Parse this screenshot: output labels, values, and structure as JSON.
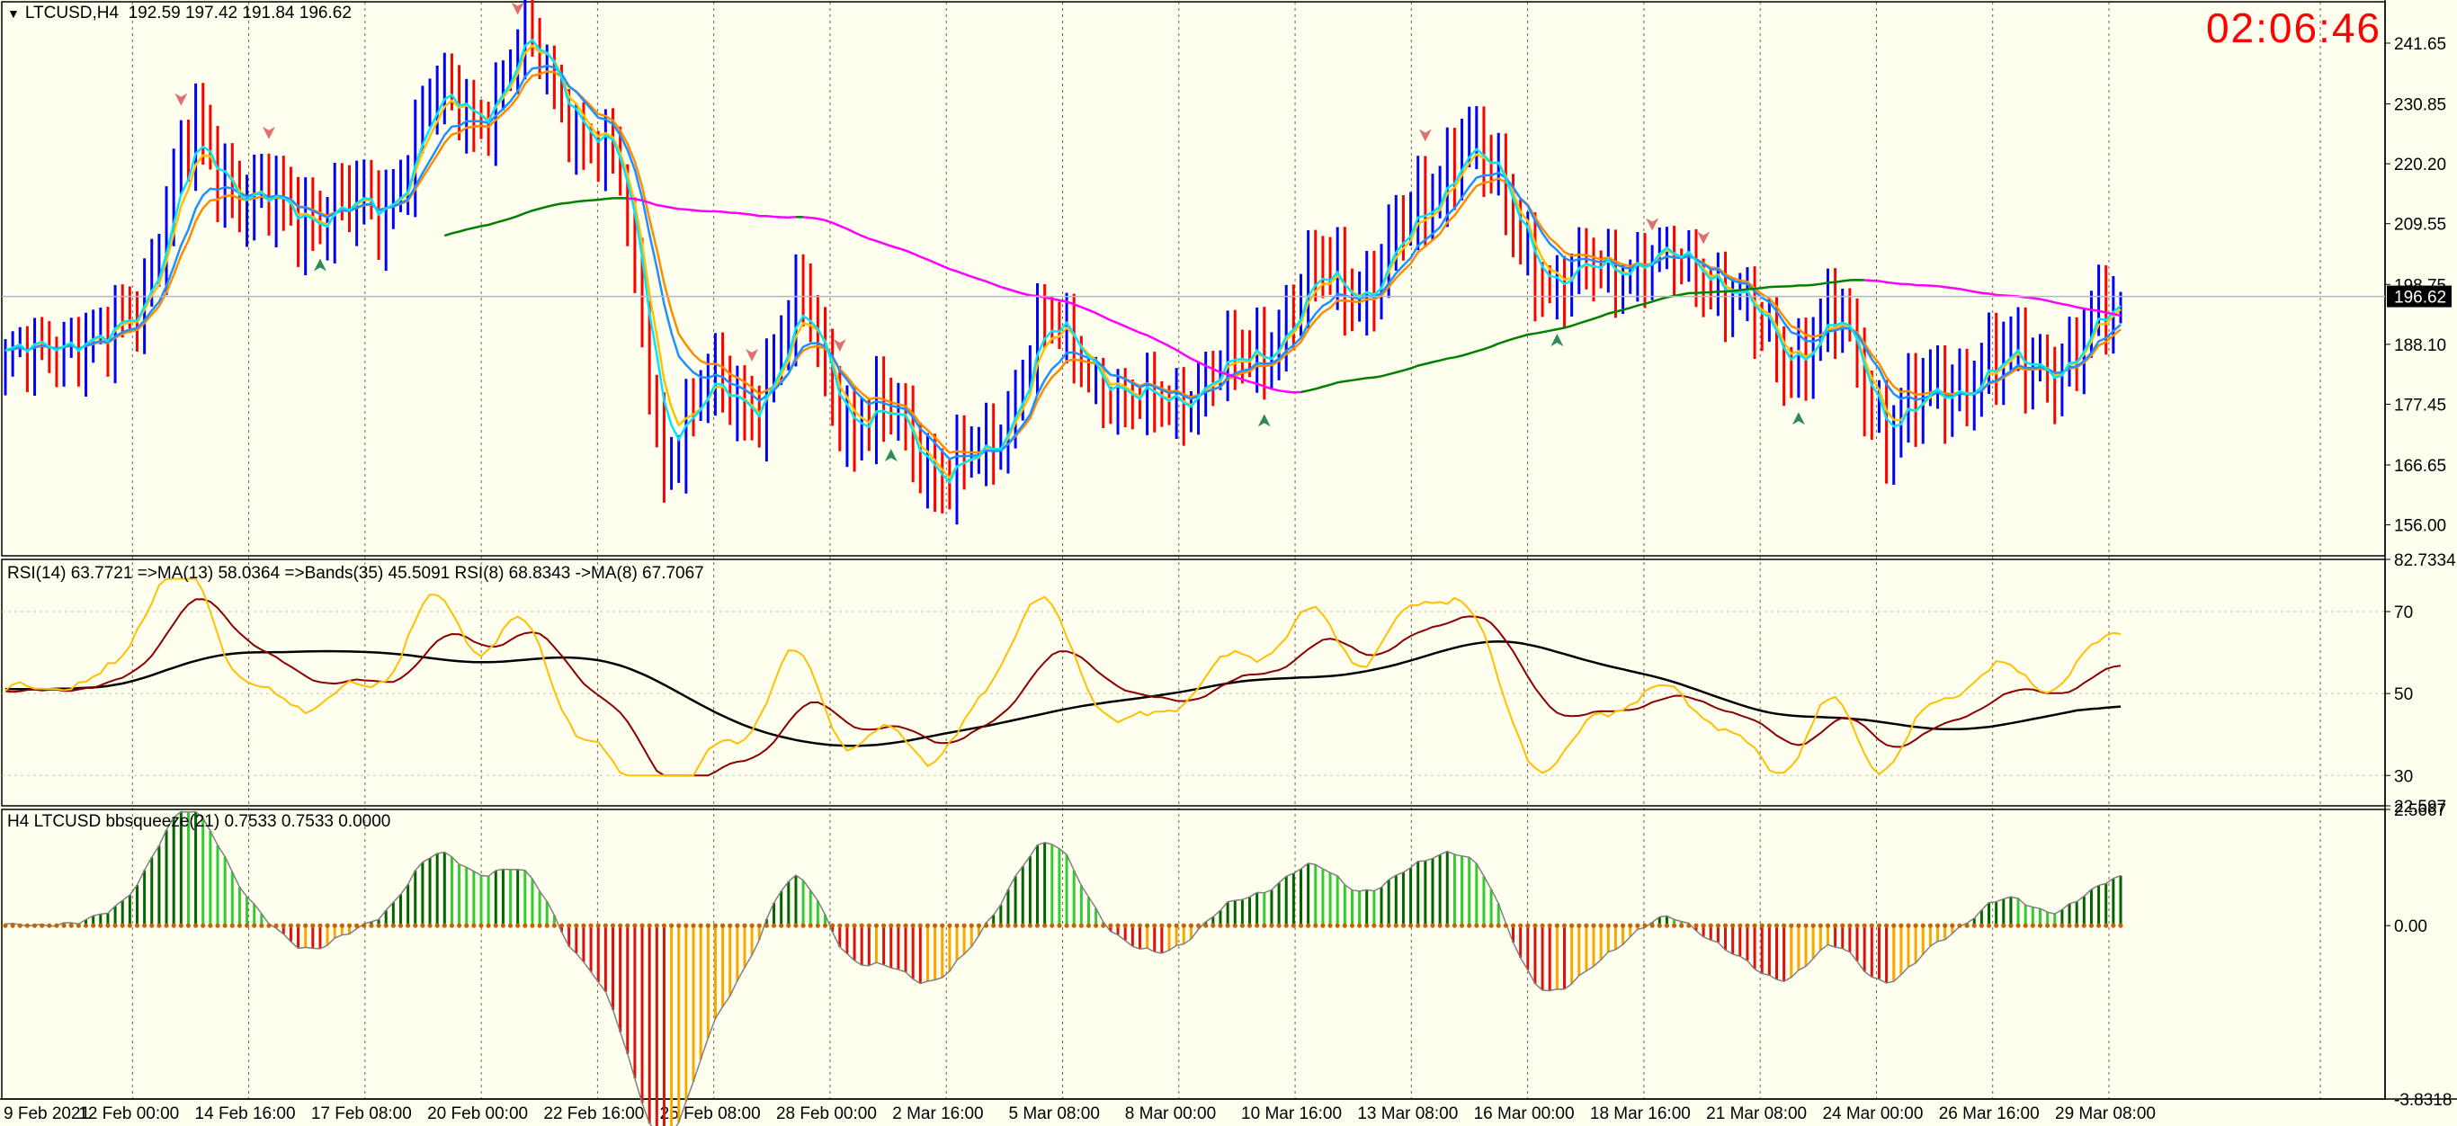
{
  "header": {
    "symbol": "LTCUSD,H4",
    "ohlc": "192.59 197.42 191.84 196.62",
    "menu_icon": "triangle-down-icon",
    "clock": "02:06:46"
  },
  "price_panel": {
    "axis_ticks": [
      "241.65",
      "230.85",
      "220.20",
      "209.55",
      "198.75",
      "188.10",
      "177.45",
      "166.65",
      "156.00"
    ],
    "current_price": "196.62",
    "ylim": [
      150.5,
      249.0
    ],
    "colors": {
      "bull": "#0000ff",
      "bear": "#ff0000",
      "ma_fast": "#00e5ff",
      "ma_mid": "#1e90ff",
      "ma_orange": "#ff8c00",
      "ma_yellow": "#ffc000",
      "ma_long_a": "#008000",
      "ma_long_b": "#ff00ff",
      "arrow_up": "#2e8b57",
      "arrow_down": "#e07070",
      "price_line": "#b0b8c8"
    }
  },
  "rsi_panel": {
    "label": "RSI(14) 63.7721  =>MA(13) 58.0364  =>Bands(35) 45.5091  RSI(8) 68.8343  ->MA(8) 67.7067",
    "axis_ticks": [
      "82.7334",
      "70",
      "50",
      "30",
      "22.597"
    ],
    "ylim": [
      22.597,
      82.7334
    ],
    "colors": {
      "rsi14": "#8b0000",
      "rsi8": "#ffc000",
      "bands": "#000000"
    }
  },
  "squeeze_panel": {
    "label": "H4 LTCUSD bbsqueeze(21) 0.7533 0.7533 0.0000",
    "axis_ticks": [
      "2.5667",
      "0.00",
      "-3.8318"
    ],
    "ylim": [
      -3.8318,
      2.5667
    ],
    "colors": {
      "pos_dark": "#006400",
      "pos_light": "#32cd32",
      "neg_dark": "#dc1010",
      "neg_light": "#ffa500",
      "outline": "#808080",
      "dot": "#c86400"
    }
  },
  "time_axis": {
    "labels": [
      "9 Feb 2021",
      "12 Feb 00:00",
      "14 Feb 16:00",
      "17 Feb 08:00",
      "20 Feb 00:00",
      "22 Feb 16:00",
      "25 Feb 08:00",
      "28 Feb 00:00",
      "2 Mar 16:00",
      "5 Mar 08:00",
      "8 Mar 00:00",
      "10 Mar 16:00",
      "13 Mar 08:00",
      "16 Mar 00:00",
      "18 Mar 16:00",
      "21 Mar 08:00",
      "24 Mar 00:00",
      "26 Mar 16:00",
      "29 Mar 08:00"
    ]
  },
  "chart_data": {
    "type": "candlestick",
    "timeframe": "H4",
    "symbol": "LTCUSD",
    "close_path": [
      {
        "x": "9 Feb 2021",
        "y": 183
      },
      {
        "x": "10 Feb",
        "y": 191
      },
      {
        "x": "11 Feb",
        "y": 186
      },
      {
        "x": "12 Feb 00:00",
        "y": 200
      },
      {
        "x": "12 Feb 16:00",
        "y": 225
      },
      {
        "x": "13 Feb",
        "y": 215
      },
      {
        "x": "14 Feb 16:00",
        "y": 210
      },
      {
        "x": "15 Feb",
        "y": 213
      },
      {
        "x": "16 Feb",
        "y": 210
      },
      {
        "x": "17 Feb 08:00",
        "y": 232
      },
      {
        "x": "18 Feb",
        "y": 228
      },
      {
        "x": "19 Feb",
        "y": 243
      },
      {
        "x": "20 Feb 00:00",
        "y": 230
      },
      {
        "x": "21 Feb",
        "y": 220
      },
      {
        "x": "22 Feb 16:00",
        "y": 168
      },
      {
        "x": "23 Feb",
        "y": 180
      },
      {
        "x": "24 Feb",
        "y": 178
      },
      {
        "x": "25 Feb 08:00",
        "y": 195
      },
      {
        "x": "26 Feb",
        "y": 172
      },
      {
        "x": "27 Feb",
        "y": 175
      },
      {
        "x": "28 Feb 00:00",
        "y": 163
      },
      {
        "x": "1 Mar",
        "y": 170
      },
      {
        "x": "2 Mar 16:00",
        "y": 192
      },
      {
        "x": "3 Mar",
        "y": 186
      },
      {
        "x": "4 Mar",
        "y": 176
      },
      {
        "x": "5 Mar 08:00",
        "y": 180
      },
      {
        "x": "6 Mar",
        "y": 183
      },
      {
        "x": "8 Mar 00:00",
        "y": 190
      },
      {
        "x": "9 Mar",
        "y": 200
      },
      {
        "x": "10 Mar 16:00",
        "y": 198
      },
      {
        "x": "11 Mar",
        "y": 210
      },
      {
        "x": "13 Mar 08:00",
        "y": 225
      },
      {
        "x": "14 Mar",
        "y": 212
      },
      {
        "x": "16 Mar 00:00",
        "y": 196
      },
      {
        "x": "17 Mar",
        "y": 204
      },
      {
        "x": "18 Mar 16:00",
        "y": 202
      },
      {
        "x": "19 Mar",
        "y": 204
      },
      {
        "x": "21 Mar 08:00",
        "y": 193
      },
      {
        "x": "22 Mar",
        "y": 186
      },
      {
        "x": "23 Mar",
        "y": 192
      },
      {
        "x": "24 Mar 00:00",
        "y": 173
      },
      {
        "x": "25 Mar",
        "y": 178
      },
      {
        "x": "26 Mar 16:00",
        "y": 184
      },
      {
        "x": "27 Mar",
        "y": 184
      },
      {
        "x": "28 Mar",
        "y": 186
      },
      {
        "x": "29 Mar 08:00",
        "y": 196.62
      }
    ],
    "last": {
      "open": 192.59,
      "high": 197.42,
      "low": 191.84,
      "close": 196.62
    }
  }
}
